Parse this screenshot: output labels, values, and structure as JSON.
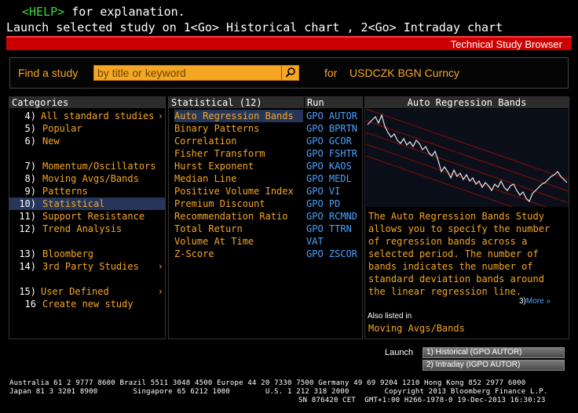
{
  "help_line": {
    "key": "<HELP>",
    "text": " for explanation."
  },
  "launch_line": "Launch selected study on 1<Go> Historical chart , 2<Go> Intraday chart",
  "title_bar": "Technical Study Browser",
  "find": {
    "label": "Find a study",
    "placeholder": "by title or keyword",
    "for": "for",
    "ticker": "USDCZK BGN Curncy"
  },
  "categories": {
    "header": "Categories",
    "items": [
      {
        "num": "4)",
        "label": "All standard studies",
        "arrow": "›"
      },
      {
        "num": "5)",
        "label": "Popular",
        "arrow": ""
      },
      {
        "num": "6)",
        "label": "New",
        "arrow": ""
      },
      {
        "num": "7)",
        "label": "Momentum/Oscillators",
        "arrow": ""
      },
      {
        "num": "8)",
        "label": "Moving Avgs/Bands",
        "arrow": ""
      },
      {
        "num": "9)",
        "label": "Patterns",
        "arrow": ""
      },
      {
        "num": "10)",
        "label": "Statistical",
        "arrow": ""
      },
      {
        "num": "11)",
        "label": "Support Resistance",
        "arrow": ""
      },
      {
        "num": "12)",
        "label": "Trend Analysis",
        "arrow": ""
      },
      {
        "num": "13)",
        "label": "Bloomberg",
        "arrow": ""
      },
      {
        "num": "14)",
        "label": "3rd Party Studies",
        "arrow": "›"
      },
      {
        "num": "15)",
        "label": "User Defined",
        "arrow": "›"
      },
      {
        "num": "16",
        "label": "Create new study",
        "arrow": ""
      }
    ]
  },
  "studies": {
    "header": "Statistical (12)",
    "run_header": "Run",
    "items": [
      {
        "name": "Auto Regression Bands",
        "run": "GPO AUTOR"
      },
      {
        "name": "Binary Patterns",
        "run": "GPO BPRTN"
      },
      {
        "name": "Correlation",
        "run": "GPO GCOR"
      },
      {
        "name": "Fisher Transform",
        "run": "GPO FSHTR"
      },
      {
        "name": "Hurst Exponent",
        "run": "GPO KAOS"
      },
      {
        "name": "Median Line",
        "run": "GPO MEDL"
      },
      {
        "name": "Positive Volume Index",
        "run": "GPO VI"
      },
      {
        "name": "Premium Discount",
        "run": "GPO PD"
      },
      {
        "name": "Recommendation Ratio",
        "run": "GPO RCMND"
      },
      {
        "name": "Total Return",
        "run": "GPO TTRN"
      },
      {
        "name": "Volume At Time",
        "run": "VAT"
      },
      {
        "name": "Z-Score",
        "run": "GPO ZSCOR"
      }
    ]
  },
  "detail": {
    "header": "Auto Regression Bands",
    "description": "The Auto Regression Bands Study allows you to specify the number of regression bands across a selected period.  The number of bands indicates the number of standard deviation bands around the linear regression line.",
    "more_num": "3)",
    "more_label": "More »",
    "also_label": "Also listed in",
    "also_value": "Moving Avgs/Bands",
    "launch_label": "Launch",
    "btn_historical": "1) Historical (GPO AUTOR)",
    "btn_intraday": "2) Intraday (IGPO AUTOR)"
  },
  "footer": {
    "line1": "Australia 61 2 9777 8600 Brazil 5511 3048 4500 Europe 44 20 7330 7500 Germany 49 69 9204 1210 Hong Kong 852 2977 6000",
    "line2": "Japan 81 3 3201 8900        Singapore 65 6212 1000        U.S. 1 212 318 2000        Copyright 2013 Bloomberg Finance L.P.",
    "line3": "SN 876420 CET  GMT+1:00 H266-1978-0 19-Dec-2013 16:30:23"
  },
  "colors": {
    "accent": "#f5a623",
    "title_red": "#cc0000",
    "link_blue": "#4aa3ff",
    "selection": "#26365a"
  }
}
